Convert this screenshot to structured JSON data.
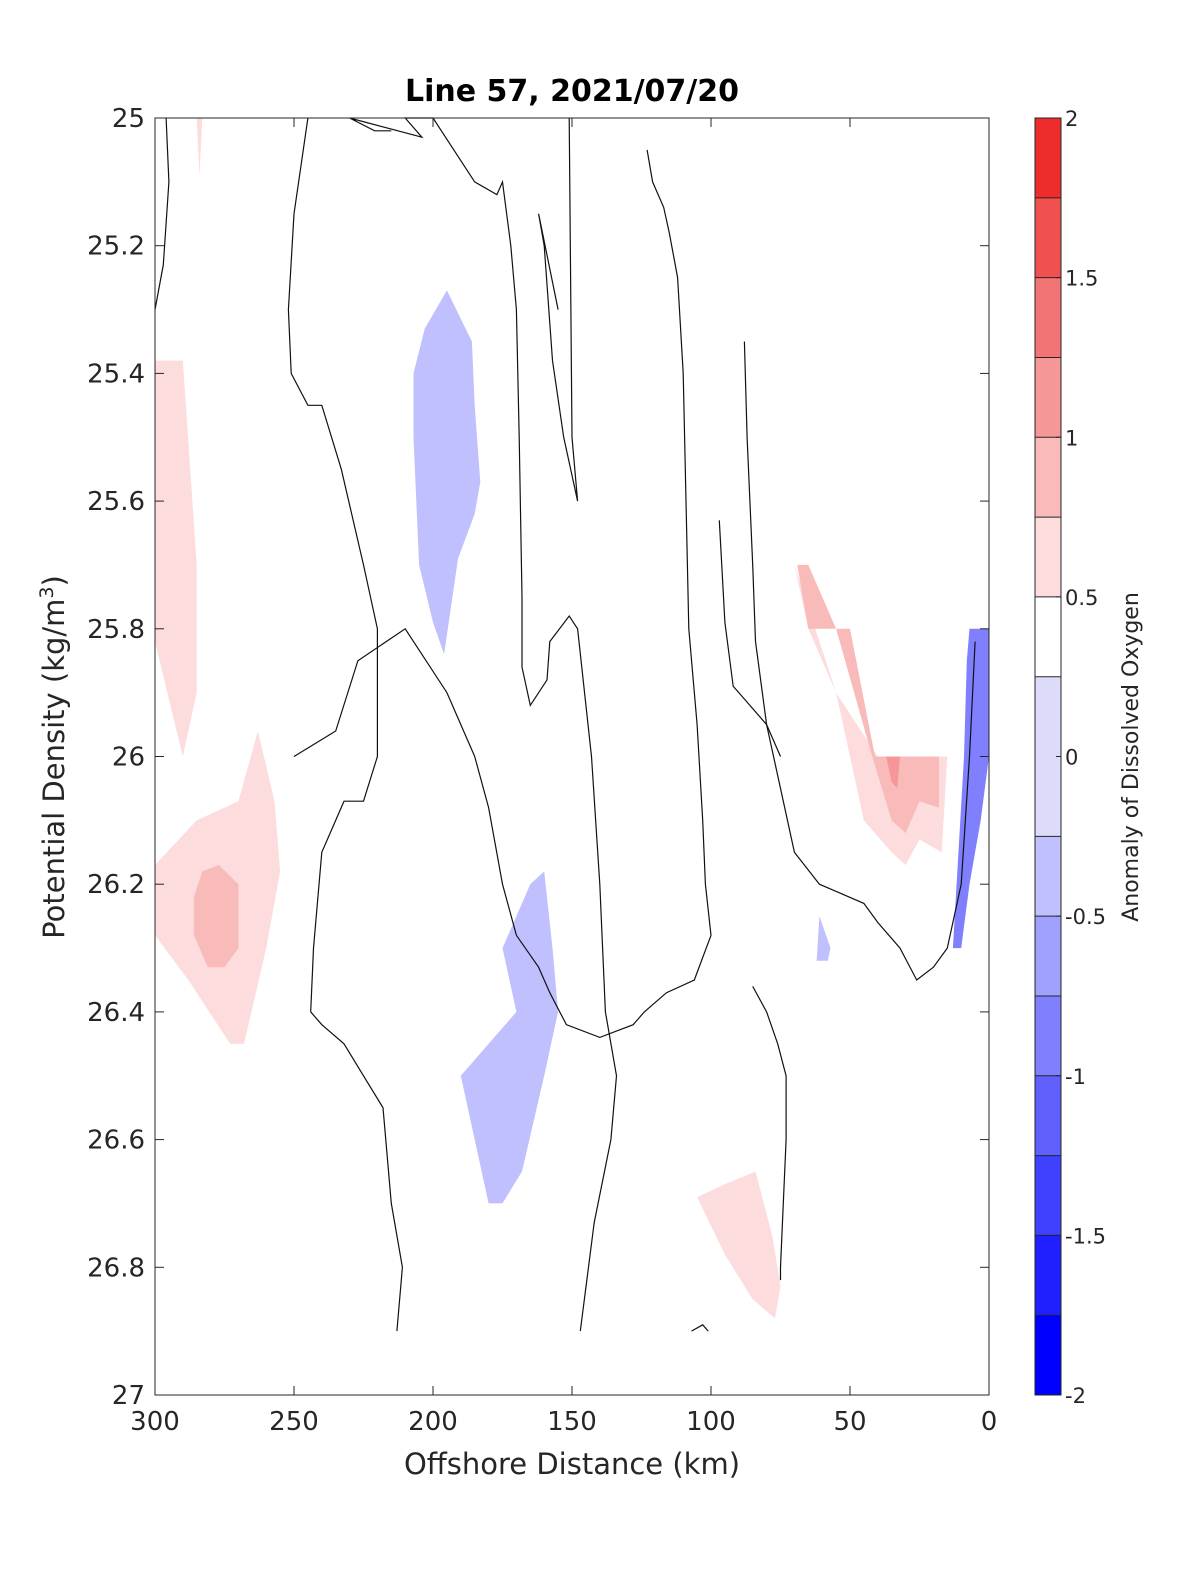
{
  "chart_data": {
    "type": "heatmap",
    "title": "Line 57, 2021/07/20",
    "xlabel": "Offshore Distance (km)",
    "ylabel": "Potential Density (kg/m",
    "ylabel_sup": "3",
    "ylabel_end": ")",
    "xlim": [
      300,
      0
    ],
    "ylim": [
      25,
      27
    ],
    "x_reversed": true,
    "y_reversed": true,
    "xticks": [
      300,
      250,
      200,
      150,
      100,
      50,
      0
    ],
    "xtick_labels": [
      "300",
      "250",
      "200",
      "150",
      "100",
      "50",
      "0"
    ],
    "yticks": [
      25,
      25.2,
      25.4,
      25.6,
      25.8,
      26,
      26.2,
      26.4,
      26.6,
      26.8,
      27
    ],
    "ytick_labels": [
      "25",
      "25.2",
      "25.4",
      "25.6",
      "25.8",
      "26",
      "26.2",
      "26.4",
      "26.6",
      "26.8",
      "27"
    ],
    "grid": false,
    "colorbar": {
      "label": "Anomaly of Dissolved Oxygen",
      "range": [
        -2,
        2
      ],
      "ticks": [
        -2,
        -1.5,
        -1,
        -0.5,
        0,
        0.5,
        1,
        1.5,
        2
      ],
      "tick_labels": [
        "-2",
        "-1.5",
        "-1",
        "-0.5",
        "0",
        "0.5",
        "1",
        "1.5",
        "2"
      ],
      "levels": [
        -2,
        -1.75,
        -1.5,
        -1.25,
        -1,
        -0.75,
        -0.5,
        -0.25,
        0.25,
        0.5,
        0.75,
        1,
        1.25,
        1.5,
        1.75,
        2
      ],
      "colors": [
        "#0000ff",
        "#2020ff",
        "#4040ff",
        "#6060ff",
        "#8080ff",
        "#a0a0ff",
        "#c0c0ff",
        "#dcdcfa",
        "#ffffff",
        "#fcdcdc",
        "#f9baba",
        "#f69797",
        "#f37474",
        "#f05050",
        "#ee2c2c",
        "#ff0000"
      ]
    },
    "filled_regions": [
      {
        "level": 0.5,
        "points": [
          [
            300,
            25.38
          ],
          [
            290,
            25.38
          ],
          [
            285,
            25.7
          ],
          [
            285,
            25.9
          ],
          [
            290,
            26.0
          ],
          [
            300,
            25.82
          ]
        ]
      },
      {
        "level": 0.5,
        "points": [
          [
            285,
            25.0
          ],
          [
            283,
            25.0
          ],
          [
            284,
            25.09
          ]
        ]
      },
      {
        "level": 0.5,
        "points": [
          [
            300,
            26.17
          ],
          [
            285,
            26.1
          ],
          [
            270,
            26.07
          ],
          [
            263,
            25.96
          ],
          [
            257,
            26.07
          ],
          [
            255,
            26.18
          ],
          [
            260,
            26.3
          ],
          [
            268,
            26.45
          ],
          [
            273,
            26.45
          ],
          [
            288,
            26.35
          ],
          [
            300,
            26.28
          ]
        ]
      },
      {
        "level": 0.75,
        "points": [
          [
            283,
            26.18
          ],
          [
            277,
            26.17
          ],
          [
            270,
            26.2
          ],
          [
            270,
            26.3
          ],
          [
            275,
            26.33
          ],
          [
            281,
            26.33
          ],
          [
            286,
            26.28
          ],
          [
            286,
            26.22
          ]
        ]
      },
      {
        "level": -0.5,
        "points": [
          [
            195,
            25.27
          ],
          [
            203,
            25.33
          ],
          [
            207,
            25.4
          ],
          [
            207,
            25.5
          ],
          [
            205,
            25.7
          ],
          [
            200,
            25.79
          ],
          [
            196,
            25.84
          ],
          [
            191,
            25.69
          ],
          [
            185,
            25.62
          ],
          [
            183,
            25.57
          ],
          [
            185,
            25.45
          ],
          [
            186,
            25.35
          ]
        ]
      },
      {
        "level": -0.5,
        "points": [
          [
            160,
            26.18
          ],
          [
            165,
            26.2
          ],
          [
            175,
            26.3
          ],
          [
            170,
            26.4
          ],
          [
            190,
            26.5
          ],
          [
            185,
            26.6
          ],
          [
            180,
            26.7
          ],
          [
            175,
            26.7
          ],
          [
            168,
            26.65
          ],
          [
            160,
            26.5
          ],
          [
            155,
            26.4
          ],
          [
            157,
            26.3
          ]
        ]
      },
      {
        "level": -0.5,
        "points": [
          [
            61,
            26.25
          ],
          [
            57,
            26.3
          ],
          [
            58,
            26.32
          ],
          [
            62,
            26.32
          ]
        ]
      },
      {
        "level": 0.5,
        "points": [
          [
            74,
            25.63
          ],
          [
            70,
            25.7
          ],
          [
            65,
            25.8
          ],
          [
            55,
            25.9
          ],
          [
            50,
            26.0
          ],
          [
            45,
            26.1
          ],
          [
            35,
            26.15
          ],
          [
            30,
            26.17
          ],
          [
            25,
            26.13
          ],
          [
            17,
            26.15
          ],
          [
            15,
            26.0
          ],
          [
            25,
            26.0
          ],
          [
            40,
            26.0
          ],
          [
            55,
            25.9
          ],
          [
            70,
            25.7
          ]
        ]
      },
      {
        "level": 0.75,
        "points": [
          [
            69,
            25.7
          ],
          [
            65,
            25.7
          ],
          [
            55,
            25.8
          ],
          [
            42,
            26.0
          ],
          [
            35,
            26.1
          ],
          [
            30,
            26.12
          ],
          [
            25,
            26.07
          ],
          [
            18,
            26.08
          ],
          [
            18,
            26.0
          ],
          [
            41,
            26.0
          ],
          [
            50,
            25.8
          ],
          [
            65,
            25.8
          ]
        ]
      },
      {
        "level": 1.0,
        "points": [
          [
            37,
            26.0
          ],
          [
            32,
            26.0
          ],
          [
            33,
            26.05
          ],
          [
            35,
            26.04
          ]
        ]
      },
      {
        "level": -1.0,
        "points": [
          [
            7,
            25.8
          ],
          [
            3,
            25.8
          ],
          [
            0,
            25.8
          ],
          [
            0,
            26.0
          ],
          [
            3,
            26.1
          ],
          [
            7,
            26.2
          ],
          [
            10,
            26.3
          ],
          [
            13,
            26.3
          ],
          [
            9,
            26.0
          ],
          [
            8,
            25.85
          ]
        ]
      },
      {
        "level": 0.5,
        "points": [
          [
            105,
            26.69
          ],
          [
            95,
            26.67
          ],
          [
            84,
            26.65
          ],
          [
            78,
            26.75
          ],
          [
            75,
            26.83
          ],
          [
            77,
            26.88
          ],
          [
            85,
            26.85
          ],
          [
            95,
            26.78
          ]
        ]
      }
    ],
    "zero_contours": [
      [
        [
          300,
          25.3
        ],
        [
          297,
          25.23
        ],
        [
          295,
          25.1
        ],
        [
          296,
          25.0
        ]
      ],
      [
        [
          245,
          25.0
        ],
        [
          250,
          25.15
        ],
        [
          252,
          25.3
        ],
        [
          251,
          25.4
        ],
        [
          245,
          25.45
        ],
        [
          240,
          25.45
        ],
        [
          233,
          25.55
        ],
        [
          225,
          25.7
        ],
        [
          220,
          25.8
        ],
        [
          220,
          26.0
        ],
        [
          225,
          26.07
        ],
        [
          232,
          26.07
        ],
        [
          240,
          26.15
        ],
        [
          243,
          26.3
        ],
        [
          244,
          26.4
        ],
        [
          240,
          26.42
        ],
        [
          232,
          26.45
        ],
        [
          225,
          26.5
        ],
        [
          218,
          26.55
        ],
        [
          215,
          26.7
        ],
        [
          211,
          26.8
        ],
        [
          213,
          26.9
        ]
      ],
      [
        [
          215,
          25.02
        ],
        [
          221,
          25.02
        ],
        [
          230,
          25.0
        ],
        [
          204,
          25.03
        ],
        [
          210,
          25.0
        ],
        [
          200,
          25.0
        ],
        [
          185,
          25.1
        ],
        [
          177,
          25.12
        ],
        [
          175,
          25.1
        ],
        [
          172,
          25.2
        ],
        [
          170,
          25.3
        ],
        [
          169,
          25.5
        ],
        [
          168,
          25.75
        ],
        [
          168,
          25.86
        ],
        [
          165,
          25.92
        ],
        [
          159,
          25.88
        ],
        [
          158,
          25.82
        ],
        [
          151,
          25.78
        ],
        [
          148,
          25.8
        ],
        [
          143,
          26.0
        ],
        [
          140,
          26.2
        ],
        [
          138,
          26.4
        ],
        [
          134,
          26.5
        ],
        [
          136,
          26.6
        ],
        [
          142,
          26.73
        ],
        [
          147,
          26.9
        ]
      ],
      [
        [
          151,
          25.0
        ],
        [
          150,
          25.5
        ],
        [
          148,
          25.6
        ],
        [
          153,
          25.5
        ],
        [
          157,
          25.38
        ],
        [
          160,
          25.2
        ],
        [
          162,
          25.15
        ],
        [
          155,
          25.3
        ]
      ],
      [
        [
          123,
          25.05
        ],
        [
          121,
          25.1
        ],
        [
          117,
          25.14
        ],
        [
          115,
          25.18
        ],
        [
          112,
          25.25
        ],
        [
          110,
          25.4
        ],
        [
          109,
          25.6
        ],
        [
          108,
          25.8
        ],
        [
          105,
          25.95
        ],
        [
          103,
          26.1
        ],
        [
          102,
          26.2
        ],
        [
          100,
          26.28
        ],
        [
          106,
          26.35
        ],
        [
          116,
          26.37
        ],
        [
          124,
          26.4
        ],
        [
          128,
          26.42
        ],
        [
          140,
          26.44
        ],
        [
          152,
          26.42
        ],
        [
          158,
          26.37
        ],
        [
          162,
          26.33
        ],
        [
          170,
          26.28
        ],
        [
          175,
          26.2
        ],
        [
          180,
          26.08
        ],
        [
          185,
          26.0
        ],
        [
          195,
          25.9
        ],
        [
          210,
          25.8
        ],
        [
          227,
          25.85
        ],
        [
          235,
          25.96
        ],
        [
          250,
          26.0
        ]
      ],
      [
        [
          85,
          26.36
        ],
        [
          80,
          26.4
        ],
        [
          76,
          26.45
        ],
        [
          73,
          26.5
        ],
        [
          73,
          26.6
        ],
        [
          74,
          26.7
        ],
        [
          75,
          26.8
        ],
        [
          75,
          26.82
        ]
      ],
      [
        [
          88,
          25.35
        ],
        [
          87,
          25.5
        ],
        [
          85,
          25.7
        ],
        [
          84,
          25.82
        ],
        [
          80,
          25.95
        ],
        [
          75,
          26.05
        ],
        [
          70,
          26.15
        ],
        [
          61,
          26.2
        ],
        [
          45,
          26.23
        ],
        [
          40,
          26.26
        ],
        [
          32,
          26.3
        ],
        [
          26,
          26.35
        ],
        [
          20,
          26.33
        ],
        [
          15,
          26.3
        ],
        [
          10,
          26.2
        ],
        [
          7,
          26.0
        ],
        [
          5,
          25.82
        ]
      ],
      [
        [
          97,
          25.63
        ],
        [
          95,
          25.79
        ],
        [
          92,
          25.89
        ],
        [
          90,
          25.9
        ],
        [
          86,
          25.92
        ],
        [
          80,
          25.95
        ],
        [
          75,
          26.0
        ]
      ],
      [
        [
          107,
          26.9
        ],
        [
          103,
          26.89
        ],
        [
          101,
          26.9
        ]
      ]
    ]
  }
}
